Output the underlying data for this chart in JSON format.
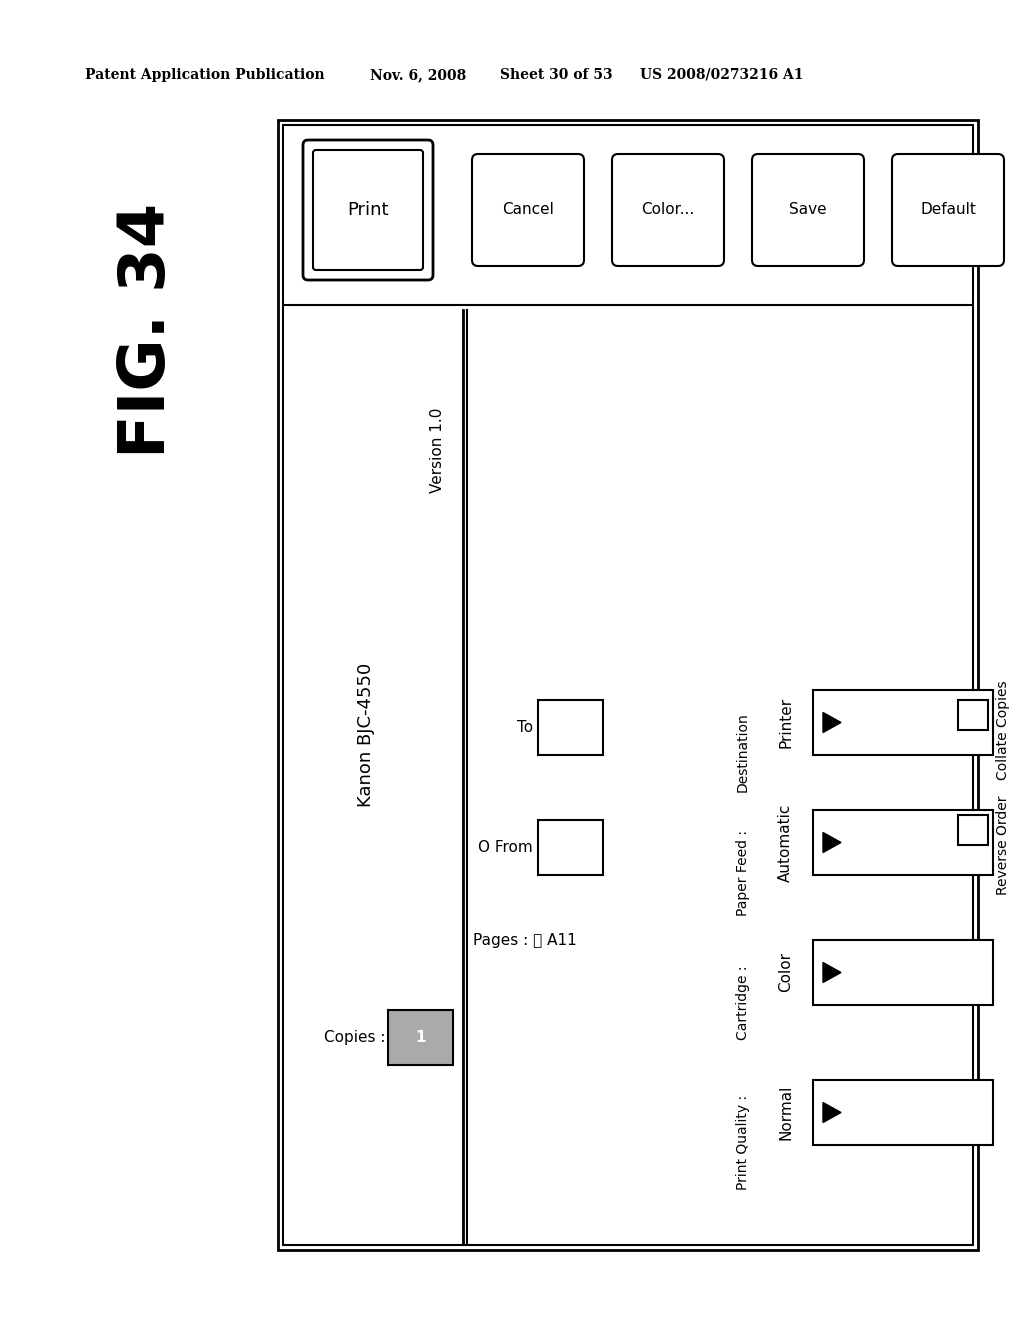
{
  "bg_color": "#ffffff",
  "header_text": "Patent Application Publication",
  "header_date": "Nov. 6, 2008",
  "header_sheet": "Sheet 30 of 53",
  "header_patent": "US 2008/0273216 A1",
  "fig_label": "FIG. 34",
  "dialog_title": "Kanon BJC-4550",
  "version_text": "Version 1.0",
  "copies_label": "Copies :",
  "pages_label": "Pages : Ⓢ A11",
  "from_label": "O From",
  "to_label": "To",
  "print_quality_label": "Print Quality :",
  "print_quality_value": "Normal",
  "cartridge_label": "Cartridge :",
  "cartridge_value": "Color",
  "paper_feed_label": "Paper Feed :",
  "paper_feed_value": "Automatic",
  "destination_label": "Destination",
  "destination_value": "Printer",
  "reverse_order_label": "Reverse Order",
  "collate_copies_label": "Collate Copies",
  "buttons": [
    "Print",
    "Cancel",
    "Color...",
    "Save",
    "Default"
  ]
}
